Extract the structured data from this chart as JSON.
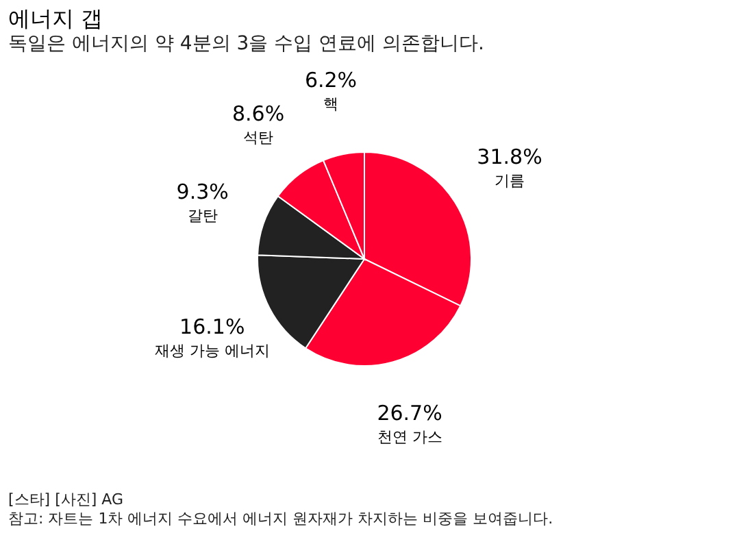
{
  "chart_data": {
    "type": "pie",
    "title": "에너지 갭",
    "subtitle": "독일은 에너지의 약 4분의 3을 수입 연료에 의존합니다.",
    "categories": [
      "기름",
      "천연 가스",
      "재생 가능 에너지",
      "갈탄",
      "석탄",
      "핵"
    ],
    "values": [
      31.8,
      26.7,
      16.1,
      9.3,
      8.6,
      6.2
    ],
    "value_labels": [
      "31.8%",
      "26.7%",
      "16.1%",
      "9.3%",
      "8.6%",
      "6.2%"
    ],
    "colors": [
      "#ff0033",
      "#ff0033",
      "#222222",
      "#222222",
      "#ff0033",
      "#ff0033"
    ],
    "legend": false,
    "annotations": [
      "[스타] [사진] AG",
      "참고: 자트는 1차 에너지 수요에서 에너지 원자재가 차지하는 비중을 보여줍니다."
    ]
  }
}
